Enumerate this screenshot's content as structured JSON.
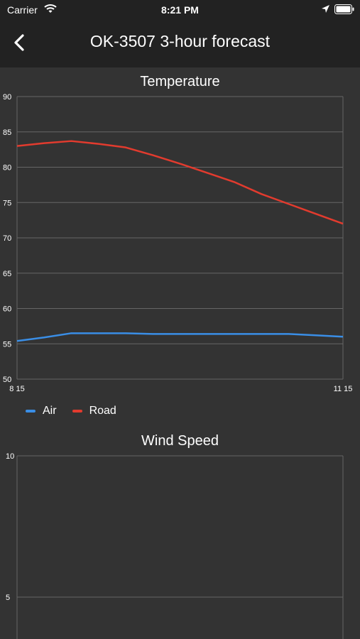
{
  "status_bar": {
    "carrier": "Carrier",
    "time": "8:21 PM"
  },
  "nav": {
    "title": "OK-3507 3-hour forecast"
  },
  "colors": {
    "air": "#3a8ee6",
    "road": "#e23b2e",
    "grid": "#666666",
    "background": "#333333",
    "header": "#222222"
  },
  "icons": {
    "back": "chevron-left-icon",
    "wifi": "wifi-icon",
    "location": "location-arrow-icon",
    "battery": "battery-icon"
  },
  "chart_data": [
    {
      "type": "line",
      "title": "Temperature",
      "xlabel": "",
      "ylabel": "",
      "ylim": [
        50,
        90
      ],
      "yticks": [
        50,
        55,
        60,
        65,
        70,
        75,
        80,
        85,
        90
      ],
      "x_tick_labels": [
        "8 15",
        "11 15"
      ],
      "grid": true,
      "legend": "bottom-left",
      "x": [
        0,
        1,
        2,
        3,
        4,
        5,
        6,
        7,
        8,
        9,
        10,
        11,
        12
      ],
      "series": [
        {
          "name": "Air",
          "values": [
            55.4,
            55.9,
            56.5,
            56.5,
            56.5,
            56.4,
            56.4,
            56.4,
            56.4,
            56.4,
            56.4,
            56.2,
            56.0
          ]
        },
        {
          "name": "Road",
          "values": [
            83.0,
            83.4,
            83.7,
            83.3,
            82.8,
            81.7,
            80.5,
            79.2,
            77.9,
            76.2,
            74.8,
            73.4,
            72.0
          ]
        }
      ]
    },
    {
      "type": "line",
      "title": "Wind Speed",
      "xlabel": "",
      "ylabel": "",
      "ylim": [
        0,
        10
      ],
      "yticks": [
        5,
        10
      ],
      "grid": true,
      "series": []
    }
  ]
}
